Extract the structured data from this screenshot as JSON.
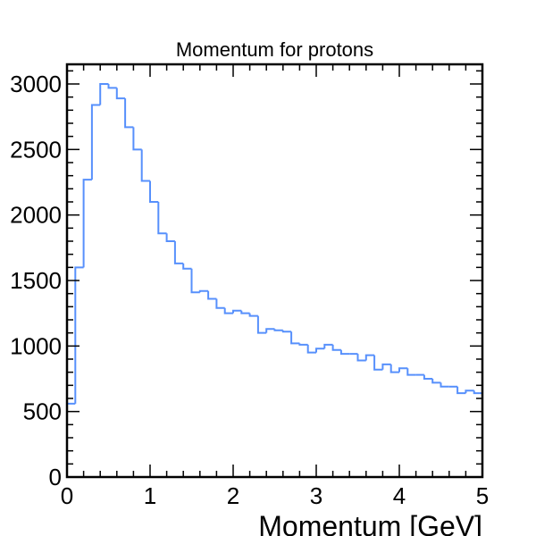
{
  "chart_data": {
    "type": "histogram",
    "title": "Momentum for protons",
    "xlabel": "Momentum [GeV]",
    "ylabel": "",
    "xlim": [
      0,
      5
    ],
    "ylim": [
      0,
      3150
    ],
    "x_ticks": [
      0,
      1,
      2,
      3,
      4,
      5
    ],
    "y_ticks": [
      0,
      500,
      1000,
      1500,
      2000,
      2500,
      3000
    ],
    "grid": false,
    "line_color": "#5790fc",
    "bin_width": 0.1,
    "bin_edges_start": 0,
    "series": [
      {
        "values": [
          560,
          1600,
          2270,
          2840,
          3000,
          2970,
          2890,
          2670,
          2500,
          2260,
          2100,
          1860,
          1800,
          1630,
          1590,
          1410,
          1420,
          1360,
          1290,
          1250,
          1270,
          1250,
          1230,
          1100,
          1130,
          1120,
          1110,
          1020,
          1010,
          950,
          980,
          1010,
          970,
          940,
          940,
          890,
          930,
          820,
          860,
          800,
          830,
          780,
          780,
          750,
          720,
          690,
          690,
          640,
          660,
          640
        ]
      }
    ]
  }
}
